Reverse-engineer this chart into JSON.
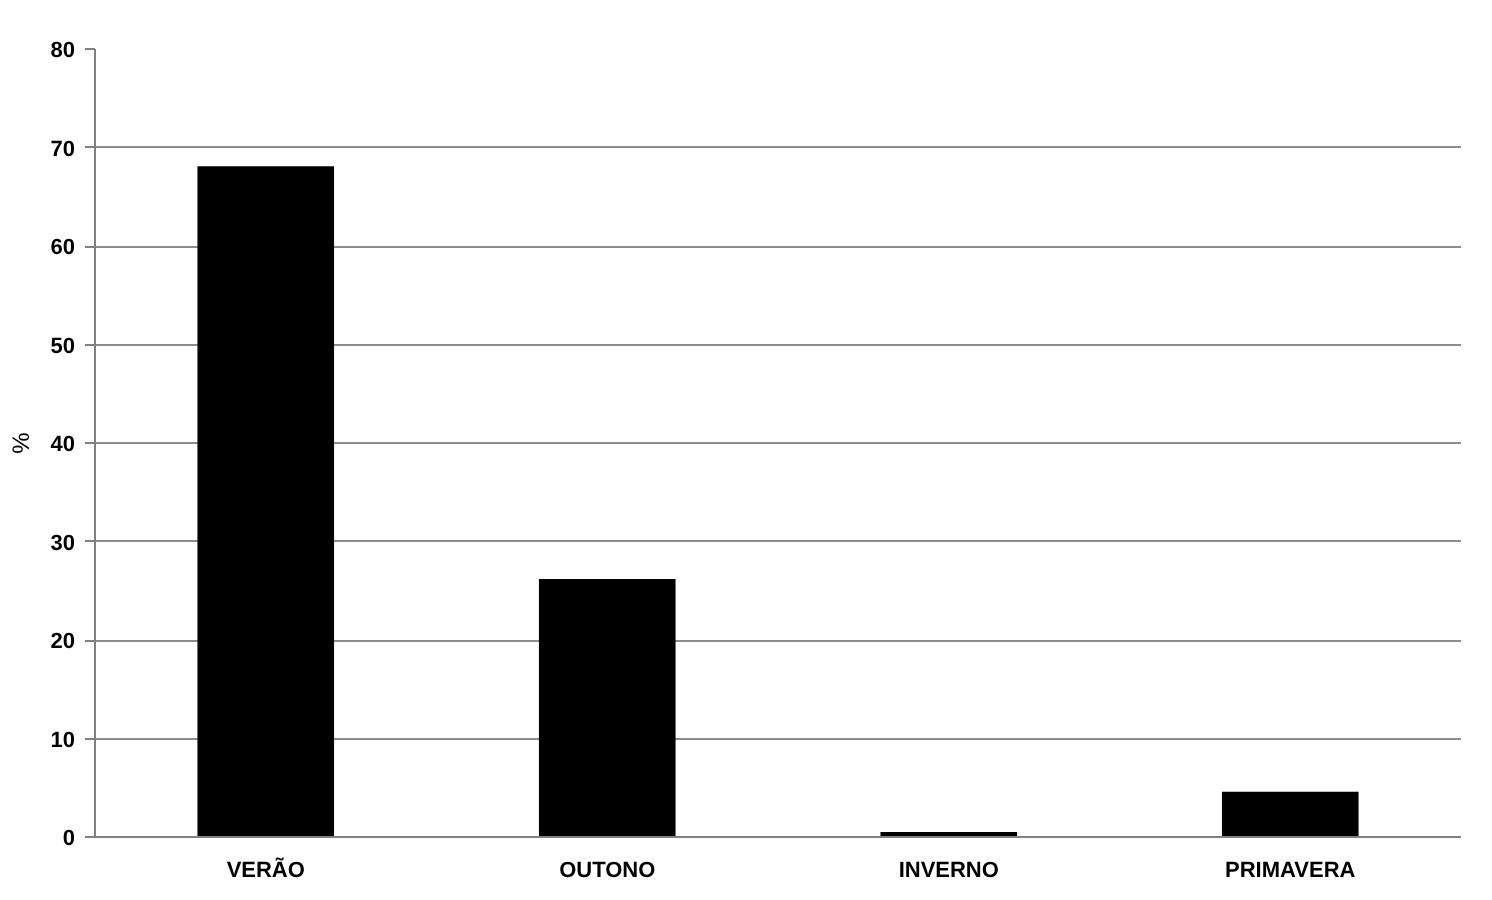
{
  "chart_data": {
    "type": "bar",
    "ylabel": "%",
    "categories": [
      "VERÃO",
      "OUTONO",
      "INVERNO",
      "PRIMAVERA"
    ],
    "values": [
      68.1,
      26.2,
      0.5,
      4.6
    ],
    "color": "#000000",
    "ylim": [
      0,
      80
    ],
    "yticks": [
      0,
      10,
      20,
      30,
      40,
      50,
      60,
      70,
      80
    ],
    "grid": "y"
  }
}
